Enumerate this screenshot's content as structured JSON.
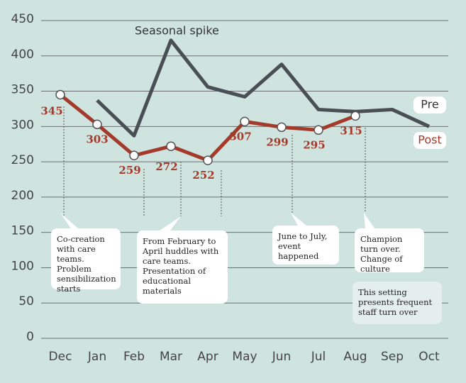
{
  "chart_data": {
    "type": "line",
    "categories": [
      "Dec",
      "Jan",
      "Feb",
      "Mar",
      "Apr",
      "May",
      "Jun",
      "Jul",
      "Aug",
      "Sep",
      "Oct"
    ],
    "series": [
      {
        "name": "Pre",
        "color": "#4a4f55",
        "values": [
          null,
          337,
          287,
          422,
          356,
          342,
          388,
          324,
          321,
          324,
          300
        ]
      },
      {
        "name": "Post",
        "color": "#a33a2b",
        "values": [
          345,
          303,
          259,
          272,
          252,
          307,
          299,
          295,
          315,
          null,
          null
        ]
      }
    ],
    "ylim": [
      0,
      450
    ],
    "yticks": [
      0,
      50,
      100,
      150,
      200,
      250,
      300,
      350,
      400,
      450
    ],
    "grid": true,
    "annotations": [
      {
        "text": "Seasonal spike"
      },
      {
        "text": "Co-creation with care teams. Problem sensibilization starts"
      },
      {
        "text": "From February to April huddles with care teams. Presentation of educational materials"
      },
      {
        "text": "June to July, event happened"
      },
      {
        "text": "Champion turn over. Change of culture"
      },
      {
        "text": "This setting presents frequent staff turn over"
      }
    ]
  }
}
